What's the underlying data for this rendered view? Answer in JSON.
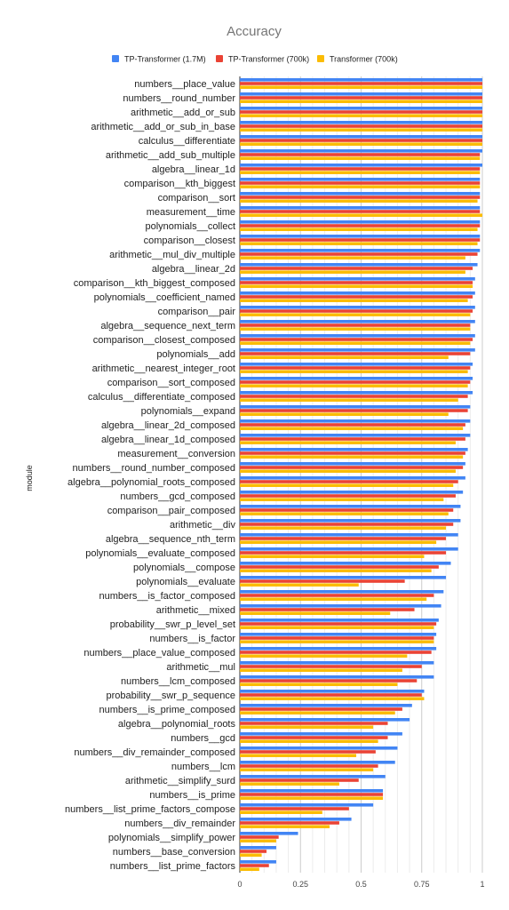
{
  "chart_data": {
    "type": "bar",
    "orientation": "horizontal",
    "title": "Accuracy",
    "ylabel": "module",
    "xlabel": "",
    "xlim": [
      0,
      1
    ],
    "xticks": [
      "0",
      "0.25",
      "0.5",
      "0.75",
      "1"
    ],
    "grid": true,
    "legend_position": "top",
    "colors": [
      "#4285F4",
      "#EA4335",
      "#FBBC04"
    ],
    "categories": [
      "numbers__place_value",
      "numbers__round_number",
      "arithmetic__add_or_sub",
      "arithmetic__add_or_sub_in_base",
      "calculus__differentiate",
      "arithmetic__add_sub_multiple",
      "algebra__linear_1d",
      "comparison__kth_biggest",
      "comparison__sort",
      "measurement__time",
      "polynomials__collect",
      "comparison__closest",
      "arithmetic__mul_div_multiple",
      "algebra__linear_2d",
      "comparison__kth_biggest_composed",
      "polynomials__coefficient_named",
      "comparison__pair",
      "algebra__sequence_next_term",
      "comparison__closest_composed",
      "polynomials__add",
      "arithmetic__nearest_integer_root",
      "comparison__sort_composed",
      "calculus__differentiate_composed",
      "polynomials__expand",
      "algebra__linear_2d_composed",
      "algebra__linear_1d_composed",
      "measurement__conversion",
      "numbers__round_number_composed",
      "algebra__polynomial_roots_composed",
      "numbers__gcd_composed",
      "comparison__pair_composed",
      "arithmetic__div",
      "algebra__sequence_nth_term",
      "polynomials__evaluate_composed",
      "polynomials__compose",
      "polynomials__evaluate",
      "numbers__is_factor_composed",
      "arithmetic__mixed",
      "probability__swr_p_level_set",
      "numbers__is_factor",
      "numbers__place_value_composed",
      "arithmetic__mul",
      "numbers__lcm_composed",
      "probability__swr_p_sequence",
      "numbers__is_prime_composed",
      "algebra__polynomial_roots",
      "numbers__gcd",
      "numbers__div_remainder_composed",
      "numbers__lcm",
      "arithmetic__simplify_surd",
      "numbers__is_prime",
      "numbers__list_prime_factors_compose",
      "numbers__div_remainder",
      "polynomials__simplify_power",
      "numbers__base_conversion",
      "numbers__list_prime_factors"
    ],
    "series": [
      {
        "name": "TP-Transformer (1.7M)",
        "values": [
          1.0,
          1.0,
          1.0,
          1.0,
          1.0,
          1.0,
          1.0,
          0.99,
          0.99,
          0.99,
          0.99,
          0.99,
          0.99,
          0.98,
          0.97,
          0.97,
          0.97,
          0.97,
          0.97,
          0.97,
          0.96,
          0.96,
          0.96,
          0.95,
          0.95,
          0.95,
          0.94,
          0.93,
          0.93,
          0.92,
          0.91,
          0.91,
          0.9,
          0.9,
          0.87,
          0.85,
          0.84,
          0.83,
          0.82,
          0.81,
          0.81,
          0.8,
          0.8,
          0.76,
          0.71,
          0.7,
          0.67,
          0.65,
          0.64,
          0.6,
          0.59,
          0.55,
          0.46,
          0.24,
          0.15,
          0.15
        ]
      },
      {
        "name": "TP-Transformer (700k)",
        "values": [
          1.0,
          1.0,
          1.0,
          1.0,
          1.0,
          0.99,
          0.99,
          0.99,
          0.99,
          0.99,
          0.99,
          0.99,
          0.98,
          0.96,
          0.96,
          0.96,
          0.96,
          0.95,
          0.96,
          0.95,
          0.95,
          0.95,
          0.94,
          0.94,
          0.93,
          0.93,
          0.93,
          0.92,
          0.9,
          0.89,
          0.88,
          0.88,
          0.85,
          0.85,
          0.82,
          0.68,
          0.8,
          0.72,
          0.81,
          0.8,
          0.79,
          0.75,
          0.73,
          0.75,
          0.67,
          0.61,
          0.61,
          0.56,
          0.57,
          0.49,
          0.59,
          0.45,
          0.41,
          0.16,
          0.11,
          0.12
        ]
      },
      {
        "name": "Transformer (700k)",
        "values": [
          1.0,
          1.0,
          1.0,
          1.0,
          1.0,
          0.99,
          0.99,
          0.99,
          0.98,
          1.0,
          0.98,
          0.98,
          0.93,
          0.93,
          0.96,
          0.94,
          0.95,
          0.95,
          0.95,
          0.86,
          0.94,
          0.94,
          0.9,
          0.86,
          0.92,
          0.89,
          0.92,
          0.89,
          0.88,
          0.84,
          0.86,
          0.85,
          0.81,
          0.76,
          0.79,
          0.49,
          0.77,
          0.62,
          0.8,
          0.8,
          0.69,
          0.67,
          0.65,
          0.76,
          0.64,
          0.55,
          0.57,
          0.48,
          0.55,
          0.41,
          0.59,
          0.34,
          0.37,
          0.15,
          0.09,
          0.08
        ]
      }
    ]
  }
}
